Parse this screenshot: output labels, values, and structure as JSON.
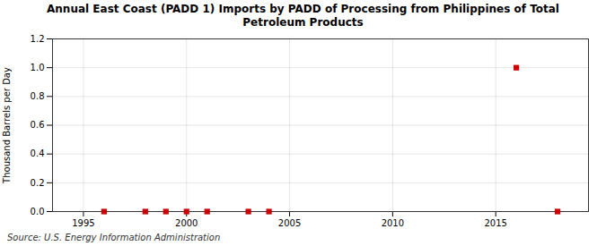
{
  "chart_data": {
    "type": "scatter",
    "title": "Annual East Coast (PADD 1) Imports by PADD of Processing from Philippines of Total\nPetroleum Products",
    "ylabel": "Thousand Barrels per Day",
    "source": "Source: U.S. Energy Information Administration",
    "x": [
      1996,
      1998,
      1999,
      2000,
      2001,
      2003,
      2004,
      2016,
      2018
    ],
    "values": [
      0.0,
      0.0,
      0.0,
      0.0,
      0.0,
      0.0,
      0.0,
      1.0,
      0.0
    ],
    "color": "#cc0000",
    "marker": "square",
    "xlim": [
      1993.5,
      2019.5
    ],
    "ylim": [
      0.0,
      1.2
    ],
    "xticks": [
      1995,
      2000,
      2005,
      2010,
      2015
    ],
    "yticks": [
      {
        "value": 0.0,
        "label": "0.0"
      },
      0.2,
      0.4,
      0.6,
      0.8,
      {
        "value": 1.0,
        "label": "1.0"
      },
      1.2
    ],
    "grid": true
  }
}
